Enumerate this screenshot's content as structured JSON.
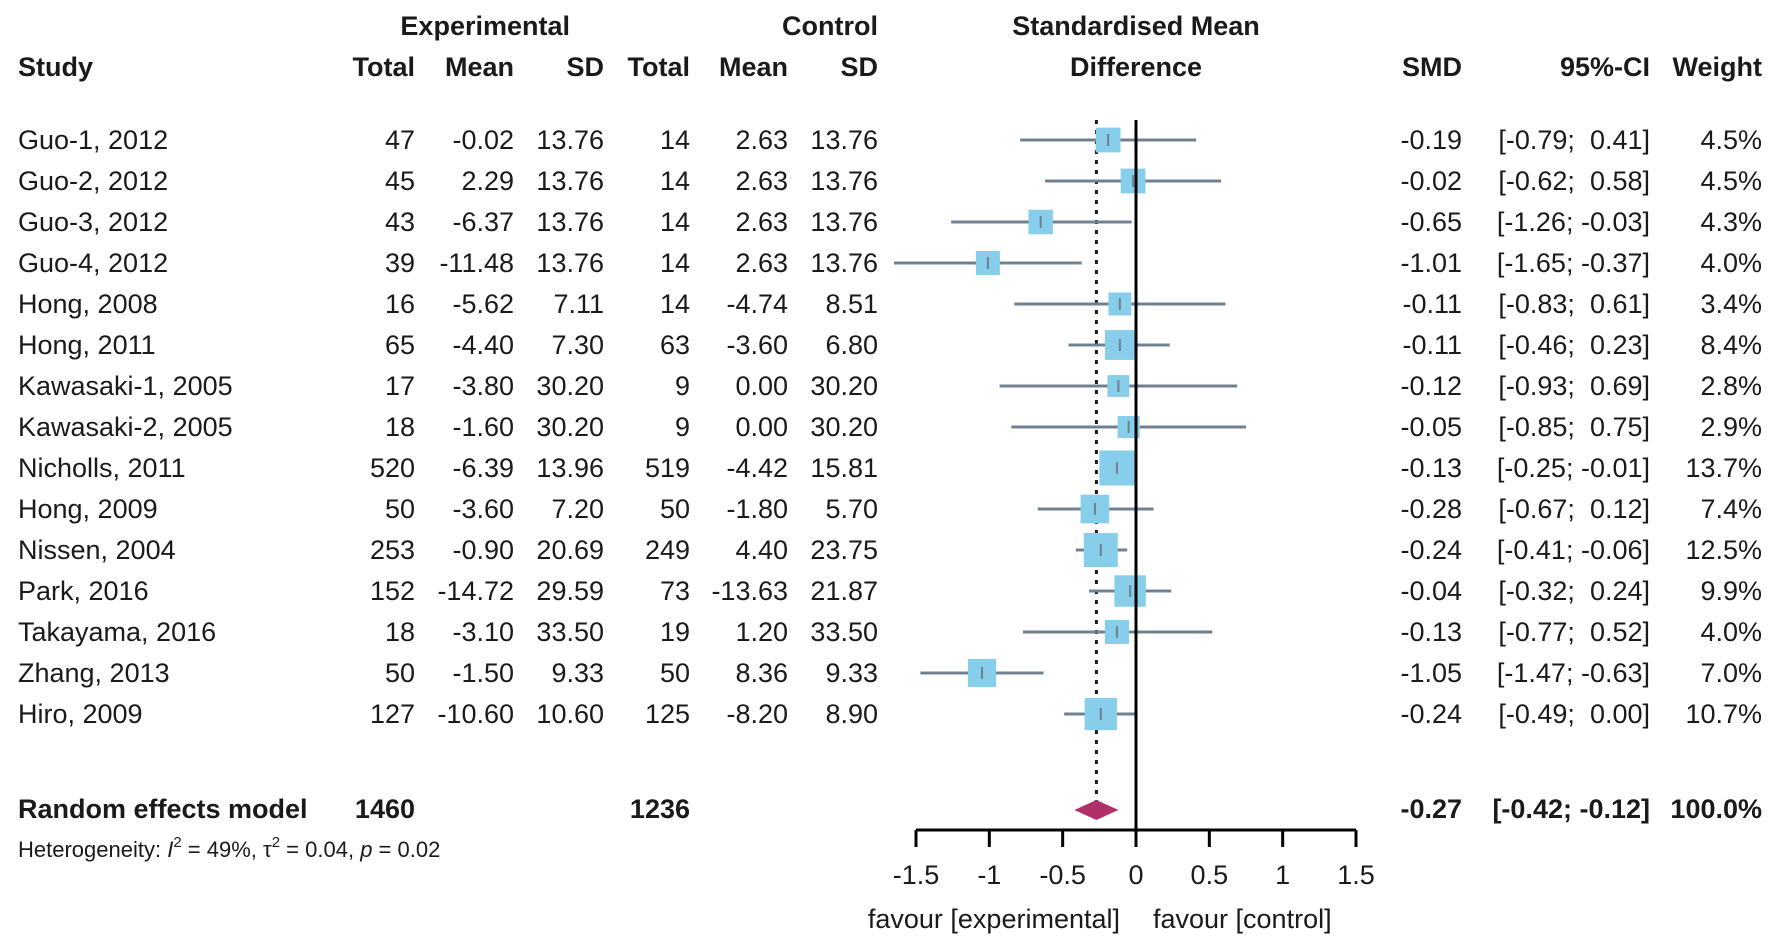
{
  "header": {
    "group_experimental": "Experimental",
    "group_control": "Control",
    "effect_title_line1": "Standardised Mean",
    "effect_title_line2": "Difference",
    "col_study": "Study",
    "col_exp_total": "Total",
    "col_exp_mean": "Mean",
    "col_exp_sd": "SD",
    "col_ctl_total": "Total",
    "col_ctl_mean": "Mean",
    "col_ctl_sd": "SD",
    "col_smd": "SMD",
    "col_ci": "95%-CI",
    "col_weight": "Weight"
  },
  "studies": [
    {
      "study": "Guo-1, 2012",
      "e_total": "47",
      "e_mean": "-0.02",
      "e_sd": "13.76",
      "c_total": "14",
      "c_mean": "2.63",
      "c_sd": "13.76",
      "smd_text": "-0.19",
      "ci_text": "[-0.79;  0.41]",
      "weight_text": "4.5%"
    },
    {
      "study": "Guo-2, 2012",
      "e_total": "45",
      "e_mean": "2.29",
      "e_sd": "13.76",
      "c_total": "14",
      "c_mean": "2.63",
      "c_sd": "13.76",
      "smd_text": "-0.02",
      "ci_text": "[-0.62;  0.58]",
      "weight_text": "4.5%"
    },
    {
      "study": "Guo-3, 2012",
      "e_total": "43",
      "e_mean": "-6.37",
      "e_sd": "13.76",
      "c_total": "14",
      "c_mean": "2.63",
      "c_sd": "13.76",
      "smd_text": "-0.65",
      "ci_text": "[-1.26; -0.03]",
      "weight_text": "4.3%"
    },
    {
      "study": "Guo-4, 2012",
      "e_total": "39",
      "e_mean": "-11.48",
      "e_sd": "13.76",
      "c_total": "14",
      "c_mean": "2.63",
      "c_sd": "13.76",
      "smd_text": "-1.01",
      "ci_text": "[-1.65; -0.37]",
      "weight_text": "4.0%"
    },
    {
      "study": "Hong, 2008",
      "e_total": "16",
      "e_mean": "-5.62",
      "e_sd": "7.11",
      "c_total": "14",
      "c_mean": "-4.74",
      "c_sd": "8.51",
      "smd_text": "-0.11",
      "ci_text": "[-0.83;  0.61]",
      "weight_text": "3.4%"
    },
    {
      "study": "Hong, 2011",
      "e_total": "65",
      "e_mean": "-4.40",
      "e_sd": "7.30",
      "c_total": "63",
      "c_mean": "-3.60",
      "c_sd": "6.80",
      "smd_text": "-0.11",
      "ci_text": "[-0.46;  0.23]",
      "weight_text": "8.4%"
    },
    {
      "study": "Kawasaki-1, 2005",
      "e_total": "17",
      "e_mean": "-3.80",
      "e_sd": "30.20",
      "c_total": "9",
      "c_mean": "0.00",
      "c_sd": "30.20",
      "smd_text": "-0.12",
      "ci_text": "[-0.93;  0.69]",
      "weight_text": "2.8%"
    },
    {
      "study": "Kawasaki-2, 2005",
      "e_total": "18",
      "e_mean": "-1.60",
      "e_sd": "30.20",
      "c_total": "9",
      "c_mean": "0.00",
      "c_sd": "30.20",
      "smd_text": "-0.05",
      "ci_text": "[-0.85;  0.75]",
      "weight_text": "2.9%"
    },
    {
      "study": "Nicholls, 2011",
      "e_total": "520",
      "e_mean": "-6.39",
      "e_sd": "13.96",
      "c_total": "519",
      "c_mean": "-4.42",
      "c_sd": "15.81",
      "smd_text": "-0.13",
      "ci_text": "[-0.25; -0.01]",
      "weight_text": "13.7%"
    },
    {
      "study": "Hong, 2009",
      "e_total": "50",
      "e_mean": "-3.60",
      "e_sd": "7.20",
      "c_total": "50",
      "c_mean": "-1.80",
      "c_sd": "5.70",
      "smd_text": "-0.28",
      "ci_text": "[-0.67;  0.12]",
      "weight_text": "7.4%"
    },
    {
      "study": "Nissen, 2004",
      "e_total": "253",
      "e_mean": "-0.90",
      "e_sd": "20.69",
      "c_total": "249",
      "c_mean": "4.40",
      "c_sd": "23.75",
      "smd_text": "-0.24",
      "ci_text": "[-0.41; -0.06]",
      "weight_text": "12.5%"
    },
    {
      "study": "Park, 2016",
      "e_total": "152",
      "e_mean": "-14.72",
      "e_sd": "29.59",
      "c_total": "73",
      "c_mean": "-13.63",
      "c_sd": "21.87",
      "smd_text": "-0.04",
      "ci_text": "[-0.32;  0.24]",
      "weight_text": "9.9%"
    },
    {
      "study": "Takayama, 2016",
      "e_total": "18",
      "e_mean": "-3.10",
      "e_sd": "33.50",
      "c_total": "19",
      "c_mean": "1.20",
      "c_sd": "33.50",
      "smd_text": "-0.13",
      "ci_text": "[-0.77;  0.52]",
      "weight_text": "4.0%"
    },
    {
      "study": "Zhang, 2013",
      "e_total": "50",
      "e_mean": "-1.50",
      "e_sd": "9.33",
      "c_total": "50",
      "c_mean": "8.36",
      "c_sd": "9.33",
      "smd_text": "-1.05",
      "ci_text": "[-1.47; -0.63]",
      "weight_text": "7.0%"
    },
    {
      "study": "Hiro, 2009",
      "e_total": "127",
      "e_mean": "-10.60",
      "e_sd": "10.60",
      "c_total": "125",
      "c_mean": "-8.20",
      "c_sd": "8.90",
      "smd_text": "-0.24",
      "ci_text": "[-0.49;  0.00]",
      "weight_text": "10.7%"
    }
  ],
  "summary": {
    "label": "Random effects model",
    "e_total": "1460",
    "c_total": "1236",
    "smd_text": "-0.27",
    "ci_text": "[-0.42; -0.12]",
    "weight_text": "100.0%",
    "heterogeneity_prefix": "Heterogeneity: ",
    "heterogeneity_i_symbol": "I",
    "heterogeneity_i_value": " = 49%, ",
    "heterogeneity_tau_symbol": "τ",
    "heterogeneity_tau_value": " = 0.04, ",
    "heterogeneity_p_symbol": "p",
    "heterogeneity_p_value": " = 0.02",
    "superscript": "2"
  },
  "axis": {
    "favour_left": "favour [experimental]",
    "favour_right": "favour [control]"
  },
  "chart_data": {
    "type": "forest",
    "x_range": [
      -1.5,
      1.5
    ],
    "x_ticks": [
      "-1.5",
      "-1",
      "-0.5",
      "0",
      "0.5",
      "1",
      "1.5"
    ],
    "null_line": 0,
    "pooled_line": -0.27,
    "square_color": "#87CEEB",
    "line_color": "#708090",
    "diamond_color": "#B0306A",
    "estimates": [
      {
        "smd": -0.19,
        "lo": -0.79,
        "hi": 0.41,
        "weight": 4.5
      },
      {
        "smd": -0.02,
        "lo": -0.62,
        "hi": 0.58,
        "weight": 4.5
      },
      {
        "smd": -0.65,
        "lo": -1.26,
        "hi": -0.03,
        "weight": 4.3
      },
      {
        "smd": -1.01,
        "lo": -1.65,
        "hi": -0.37,
        "weight": 4.0
      },
      {
        "smd": -0.11,
        "lo": -0.83,
        "hi": 0.61,
        "weight": 3.4
      },
      {
        "smd": -0.11,
        "lo": -0.46,
        "hi": 0.23,
        "weight": 8.4
      },
      {
        "smd": -0.12,
        "lo": -0.93,
        "hi": 0.69,
        "weight": 2.8
      },
      {
        "smd": -0.05,
        "lo": -0.85,
        "hi": 0.75,
        "weight": 2.9
      },
      {
        "smd": -0.13,
        "lo": -0.25,
        "hi": -0.01,
        "weight": 13.7
      },
      {
        "smd": -0.28,
        "lo": -0.67,
        "hi": 0.12,
        "weight": 7.4
      },
      {
        "smd": -0.24,
        "lo": -0.41,
        "hi": -0.06,
        "weight": 12.5
      },
      {
        "smd": -0.04,
        "lo": -0.32,
        "hi": 0.24,
        "weight": 9.9
      },
      {
        "smd": -0.13,
        "lo": -0.77,
        "hi": 0.52,
        "weight": 4.0
      },
      {
        "smd": -1.05,
        "lo": -1.47,
        "hi": -0.63,
        "weight": 7.0
      },
      {
        "smd": -0.24,
        "lo": -0.49,
        "hi": 0.0,
        "weight": 10.7
      }
    ],
    "pooled": {
      "smd": -0.27,
      "lo": -0.42,
      "hi": -0.12
    }
  }
}
